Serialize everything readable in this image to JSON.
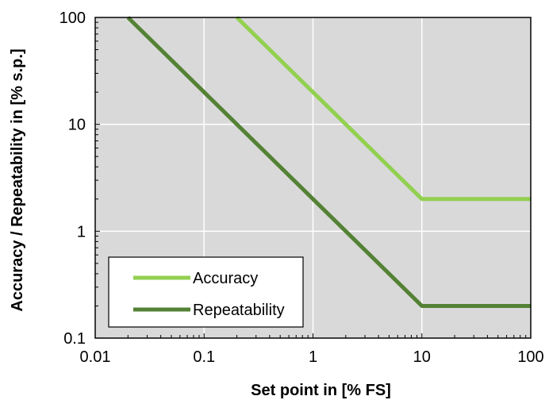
{
  "chart_data": {
    "type": "line",
    "title": "",
    "xlabel": "Set point in [% FS]",
    "ylabel": "Accuracy / Repeatability in [% s.p.]",
    "xscale": "log",
    "yscale": "log",
    "xlim": [
      0.01,
      100
    ],
    "ylim": [
      0.1,
      100
    ],
    "x_ticks": [
      "0.01",
      "0.1",
      "1",
      "10",
      "100"
    ],
    "y_ticks": [
      "0.1",
      "1",
      "10",
      "100"
    ],
    "grid": true,
    "legend_position": "bottom-left",
    "plot_background": "#d9d9d9",
    "grid_color": "#ffffff",
    "series": [
      {
        "name": "Accuracy",
        "color": "#92d050",
        "points": [
          [
            0.2,
            100
          ],
          [
            10,
            2
          ],
          [
            100,
            2
          ]
        ]
      },
      {
        "name": "Repeatability",
        "color": "#548235",
        "points": [
          [
            0.02,
            100
          ],
          [
            10,
            0.2
          ],
          [
            100,
            0.2
          ]
        ]
      }
    ]
  }
}
